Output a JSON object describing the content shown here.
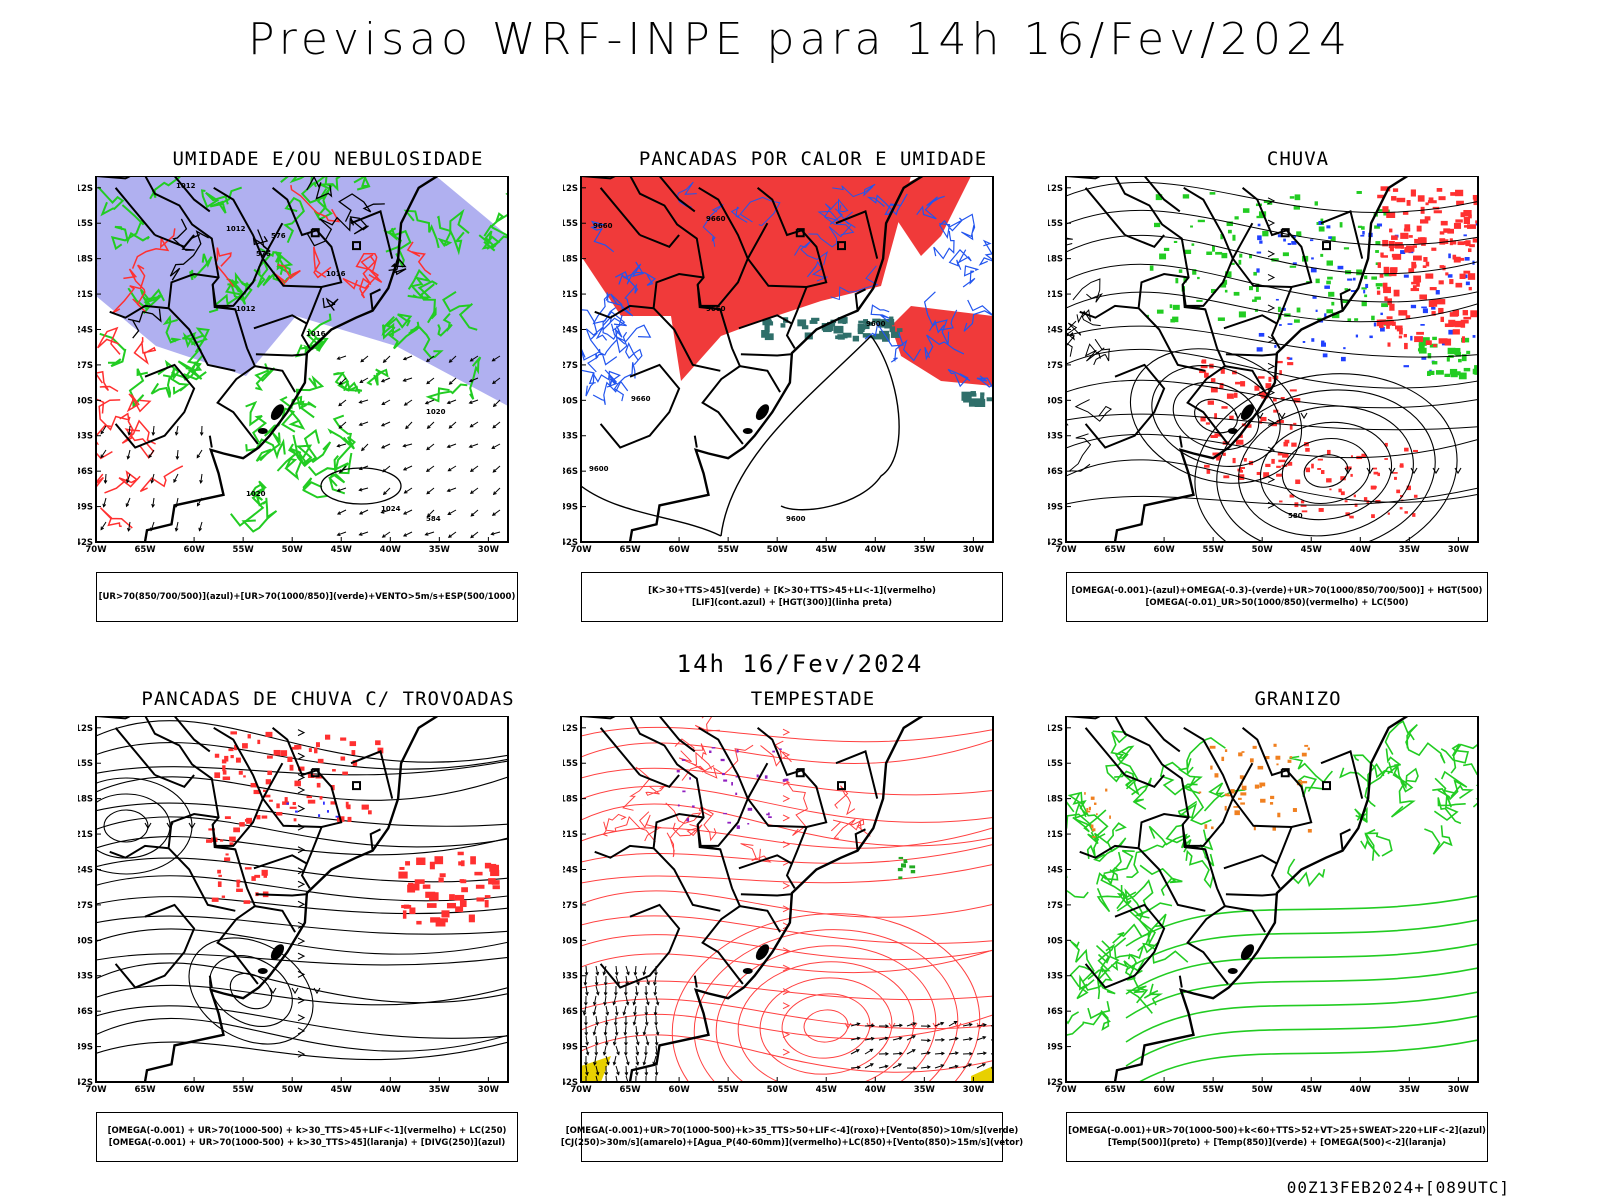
{
  "main_title": "Previsao WRF-INPE  para 14h 16/Fev/2024",
  "mid_title": "14h 16/Fev/2024",
  "footer": "00Z13FEB2024+[089UTC]",
  "axes": {
    "lat_labels": [
      "12S",
      "15S",
      "18S",
      "21S",
      "24S",
      "27S",
      "30S",
      "33S",
      "36S",
      "39S",
      "42S"
    ],
    "lon_labels": [
      "70W",
      "65W",
      "60W",
      "55W",
      "50W",
      "45W",
      "40W",
      "35W",
      "30W"
    ]
  },
  "panels": [
    {
      "title": "UMIDADE E/OU NEBULOSIDADE",
      "legend": [
        "[UR>70(850/700/500)](azul)+[UR>70(1000/850)](verde)+VENTO>5m/s+ESP(500/1000)"
      ],
      "contour_labels": [
        "1012",
        "1012",
        "1012",
        "1016",
        "1016",
        "1020",
        "1024",
        "1020",
        "576",
        "576",
        "584"
      ],
      "colors": {
        "blue": "#b0b0f0",
        "green": "#22cc22",
        "red": "#ff3030"
      }
    },
    {
      "title": "PANCADAS POR CALOR E UMIDADE",
      "legend": [
        "[K>30+TTS>45](verde) + [K>30+TTS>45+LI<-1](vermelho)",
        "[LIF](cont.azul) + [HGT(300)](linha preta)"
      ],
      "contour_labels": [
        "9660",
        "9660",
        "9660",
        "9600",
        "9660",
        "9600",
        "9600"
      ],
      "colors": {
        "red": "#f03a3a",
        "teal": "#2f6f6a",
        "blue": "#2255ee"
      }
    },
    {
      "title": "CHUVA",
      "legend": [
        "[OMEGA(-0.001)-(azul)+OMEGA(-0.3)-(verde)+UR>70(1000/850/700/500)] + HGT(500)",
        "[OMEGA(-0.01)_UR>50(1000/850)(vermelho) + LC(500)"
      ],
      "contour_labels": [
        "580"
      ],
      "colors": {
        "red": "#ff3030",
        "green": "#22cc22",
        "blue": "#2040ff"
      }
    },
    {
      "title": "PANCADAS DE CHUVA C/ TROVOADAS",
      "legend": [
        "[OMEGA(-0.001) + UR>70(1000-500) + k>30_TTS>45+LIF<-1](vermelho) + LC(250)",
        "[OMEGA(-0.001) + UR>70(1000-500) + k>30_TTS>45](laranja) + [DIVG(250)](azul)"
      ],
      "contour_labels": [],
      "colors": {
        "red": "#ff3030",
        "blue": "#3030ff"
      }
    },
    {
      "title": "TEMPESTADE",
      "legend": [
        "[OMEGA(-0.001)+UR>70(1000-500)+k>35_TTS>50+LIF<-4](roxo)+[Vento(850)>10m/s](verde)",
        "[CJ(250)>30m/s](amarelo)+[Agua_P(40-60mm)](vermelho)+LC(850)+[Vento(850)>15m/s](vetor)"
      ],
      "contour_labels": [],
      "colors": {
        "red": "#ff4040",
        "purple": "#9020c0",
        "green": "#22aa22",
        "yellow": "#e8d000"
      }
    },
    {
      "title": "GRANIZO",
      "legend": [
        "[OMEGA(-0.001)+UR>70(1000-500)+k<60+TTS>52+VT>25+SWEAT>220+LIF<-2](azul)",
        "[Temp(500)](preto) + [Temp(850)](verde) + [OMEGA(500)<-2](laranja)"
      ],
      "contour_labels": [],
      "colors": {
        "green": "#22cc22",
        "orange": "#f08020"
      }
    }
  ]
}
